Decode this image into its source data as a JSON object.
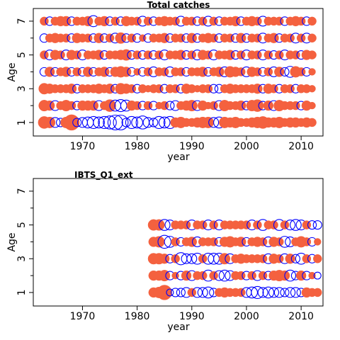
{
  "chart_data": [
    {
      "type": "scatter",
      "title": "Total catches",
      "xlabel": "year",
      "ylabel": "Age",
      "xlim": [
        1961,
        2014
      ],
      "ylim": [
        0.2,
        7.75
      ],
      "x_ticks": [
        1970,
        1980,
        1990,
        2000,
        2010
      ],
      "y_ticks": [
        1,
        3,
        5,
        7
      ],
      "y_minor_ticks": [
        2,
        4,
        6
      ],
      "years": [
        1963,
        2012
      ],
      "ages": [
        1,
        7
      ],
      "grid": false,
      "legend": "none",
      "series": [
        {
          "name": "",
          "color": "#F4613F",
          "style": "filled"
        },
        {
          "name": "",
          "color": "#0000FF",
          "style": "open"
        }
      ],
      "residuals": {
        "1": [
          0.6,
          0.5,
          -0.4,
          -0.3,
          0.5,
          1.0,
          -0.3,
          -0.4,
          -0.5,
          -0.6,
          -0.5,
          -0.6,
          -0.7,
          -0.9,
          -0.9,
          -0.3,
          -0.6,
          -0.5,
          -0.7,
          -0.4,
          -0.3,
          -0.6,
          -0.5,
          -0.6,
          0.4,
          0.5,
          0.3,
          0.3,
          0.4,
          0.5,
          0.5,
          -0.4,
          -0.5,
          0.5,
          0.4,
          0.5,
          0.3,
          0.3,
          0.4,
          0.5,
          0.6,
          0.4,
          0.4,
          0.5,
          0.3,
          0.4,
          0.4,
          0.3,
          0.4,
          0.3
        ],
        "2": [
          0.5,
          0.4,
          -0.4,
          0.3,
          0.5,
          0.3,
          -0.3,
          0.4,
          0.4,
          0.4,
          -0.4,
          0.3,
          0.6,
          -0.5,
          -0.6,
          -0.5,
          0.4,
          0.3,
          -0.3,
          0.3,
          -0.3,
          0.2,
          0.3,
          -0.3,
          -0.4,
          0.3,
          0.4,
          0.5,
          -0.4,
          0.4,
          0.2,
          0.3,
          -0.4,
          0.5,
          0.3,
          0.3,
          0.4,
          -0.3,
          0.5,
          0.6,
          -0.3,
          0.4,
          -0.4,
          0.5,
          0.3,
          0.3,
          0.3,
          -0.3,
          0.4,
          0.2
        ],
        "3": [
          0.5,
          0.4,
          0.3,
          0.3,
          0.3,
          0.4,
          -0.3,
          0.3,
          0.3,
          0.3,
          0.4,
          0.3,
          0.4,
          -0.3,
          0.5,
          0.4,
          0.3,
          -0.3,
          0.3,
          0.2,
          0.3,
          0.3,
          -0.3,
          0.3,
          0.3,
          -0.3,
          0.4,
          0.3,
          0.2,
          0.3,
          0.3,
          -0.3,
          -0.3,
          0.3,
          0.4,
          0.3,
          0.3,
          0.3,
          0.3,
          0.4,
          -0.3,
          0.4,
          0.3,
          -0.3,
          0.3,
          0.3,
          -0.3,
          0.3,
          0.3,
          0.2
        ],
        "4": [
          -0.3,
          0.4,
          -0.3,
          0.3,
          0.4,
          -0.3,
          0.3,
          -0.3,
          0.4,
          -0.3,
          0.3,
          0.4,
          -0.3,
          0.4,
          0.5,
          0.4,
          -0.3,
          0.2,
          -0.3,
          0.3,
          -0.4,
          0.3,
          0.3,
          -0.4,
          0.3,
          0.3,
          -0.3,
          0.3,
          0.3,
          0.4,
          -0.3,
          0.3,
          0.4,
          -0.4,
          0.5,
          0.4,
          0.3,
          -0.4,
          0.4,
          0.3,
          -0.3,
          0.3,
          -0.4,
          0.4,
          -0.3,
          -0.5,
          0.5,
          0.3,
          -0.3,
          0.2
        ],
        "5": [
          0.3,
          -0.4,
          0.4,
          0.3,
          -0.4,
          0.4,
          0.3,
          -0.4,
          0.3,
          0.3,
          0.4,
          -0.3,
          0.3,
          0.3,
          0.4,
          0.5,
          -0.3,
          0.3,
          -0.3,
          0.3,
          -0.3,
          0.3,
          -0.4,
          0.3,
          0.3,
          0.4,
          -0.3,
          0.3,
          -0.4,
          0.4,
          0.3,
          -0.4,
          0.3,
          0.3,
          0.4,
          -0.3,
          0.3,
          -0.4,
          0.3,
          0.3,
          -0.4,
          0.3,
          -0.3,
          0.3,
          -0.4,
          0.3,
          0.3,
          -0.3,
          0.4,
          0.3
        ],
        "6": [
          -0.3,
          0.3,
          0.4,
          0.3,
          0.3,
          -0.3,
          0.4,
          0.3,
          0.3,
          -0.3,
          0.4,
          -0.3,
          0.3,
          -0.4,
          0.5,
          -0.3,
          0.3,
          -0.3,
          0.2,
          -0.3,
          0.3,
          0.3,
          0.4,
          -0.3,
          0.3,
          0.3,
          -0.3,
          0.4,
          -0.3,
          0.3,
          0.4,
          0.3,
          -0.3,
          0.3,
          0.3,
          -0.3,
          0.4,
          -0.3,
          0.3,
          0.3,
          -0.4,
          0.3,
          0.4,
          -0.3,
          0.3,
          0.3,
          -0.4,
          0.3,
          -0.4,
          0.3
        ],
        "7": [
          0.3,
          -0.3,
          0.3,
          0.4,
          0.4,
          -0.3,
          0.3,
          0.3,
          0.4,
          -0.5,
          0.3,
          0.4,
          -0.3,
          0.3,
          -0.3,
          0.4,
          0.3,
          0.3,
          -0.4,
          0.3,
          -0.3,
          0.3,
          0.4,
          0.3,
          0.3,
          -0.4,
          0.3,
          0.3,
          -0.3,
          0.3,
          -0.4,
          0.3,
          -0.3,
          0.3,
          0.3,
          0.4,
          -0.3,
          0.3,
          0.4,
          0.3,
          -0.4,
          0.3,
          0.3,
          0.3,
          -0.3,
          0.3,
          0.4,
          0.3,
          -0.3,
          0.3
        ]
      }
    },
    {
      "type": "scatter",
      "title": "IBTS_Q1_ext",
      "xlabel": "year",
      "ylabel": "Age",
      "xlim": [
        1961,
        2014
      ],
      "ylim": [
        0.2,
        7.75
      ],
      "x_ticks": [
        1970,
        1980,
        1990,
        2000,
        2010
      ],
      "y_ticks": [
        1,
        3,
        5,
        7
      ],
      "y_minor_ticks": [
        2,
        4,
        6
      ],
      "years": [
        1983,
        2013
      ],
      "ages": [
        1,
        5
      ],
      "grid": false,
      "legend": "none",
      "series": [
        {
          "name": "",
          "color": "#F4613F",
          "style": "filled"
        },
        {
          "name": "",
          "color": "#0000FF",
          "style": "open"
        }
      ],
      "residuals": {
        "1": [
          0.4,
          0.5,
          0.9,
          -0.2,
          -0.3,
          -0.3,
          -0.4,
          0.3,
          -0.4,
          -0.4,
          -0.5,
          -0.3,
          0.3,
          0.4,
          0.3,
          0.3,
          0.3,
          -0.4,
          -0.5,
          -0.6,
          -0.4,
          -0.5,
          -0.4,
          -0.4,
          -0.3,
          -0.4,
          -0.4,
          -0.3,
          0.4,
          0.3,
          0.3
        ],
        "2": [
          0.4,
          0.4,
          0.5,
          -0.3,
          0.2,
          -0.3,
          0.4,
          -0.4,
          0.3,
          0.3,
          -0.5,
          0.3,
          -0.4,
          -0.5,
          -0.4,
          0.3,
          0.3,
          -0.3,
          0.3,
          -0.4,
          0.3,
          -0.3,
          0.4,
          0.5,
          0.4,
          -0.5,
          -0.3,
          0.4,
          -0.3,
          0.2,
          -0.2
        ],
        "3": [
          0.5,
          0.5,
          0.4,
          -0.3,
          0.3,
          -0.6,
          -0.4,
          -0.4,
          -0.5,
          0.3,
          -0.5,
          -0.5,
          -0.5,
          0.5,
          -0.4,
          0.3,
          0.4,
          0.3,
          0.3,
          0.3,
          0.3,
          -0.4,
          0.4,
          0.3,
          -0.4,
          0.4,
          -0.3,
          -0.5,
          0.3,
          -0.3,
          0.3
        ],
        "4": [
          0.4,
          0.5,
          -0.7,
          -0.5,
          0.3,
          -0.3,
          0.3,
          0.4,
          -0.4,
          0.3,
          0.3,
          0.3,
          -0.3,
          0.4,
          0.5,
          0.3,
          0.4,
          -0.3,
          0.3,
          0.4,
          0.3,
          -0.4,
          0.4,
          0.3,
          -0.5,
          -0.4,
          0.3,
          0.5,
          0.3,
          -0.3,
          0.2
        ],
        "5": [
          0.5,
          0.5,
          -0.5,
          -0.4,
          0.3,
          0.3,
          0.3,
          -0.4,
          0.3,
          0.3,
          -0.4,
          0.3,
          -0.4,
          0.3,
          0.3,
          0.3,
          0.3,
          0.3,
          -0.4,
          0.3,
          -0.5,
          0.3,
          0.3,
          -0.5,
          0.3,
          -0.4,
          -0.5,
          -0.4,
          0.3,
          -0.3,
          -0.3
        ]
      }
    }
  ]
}
